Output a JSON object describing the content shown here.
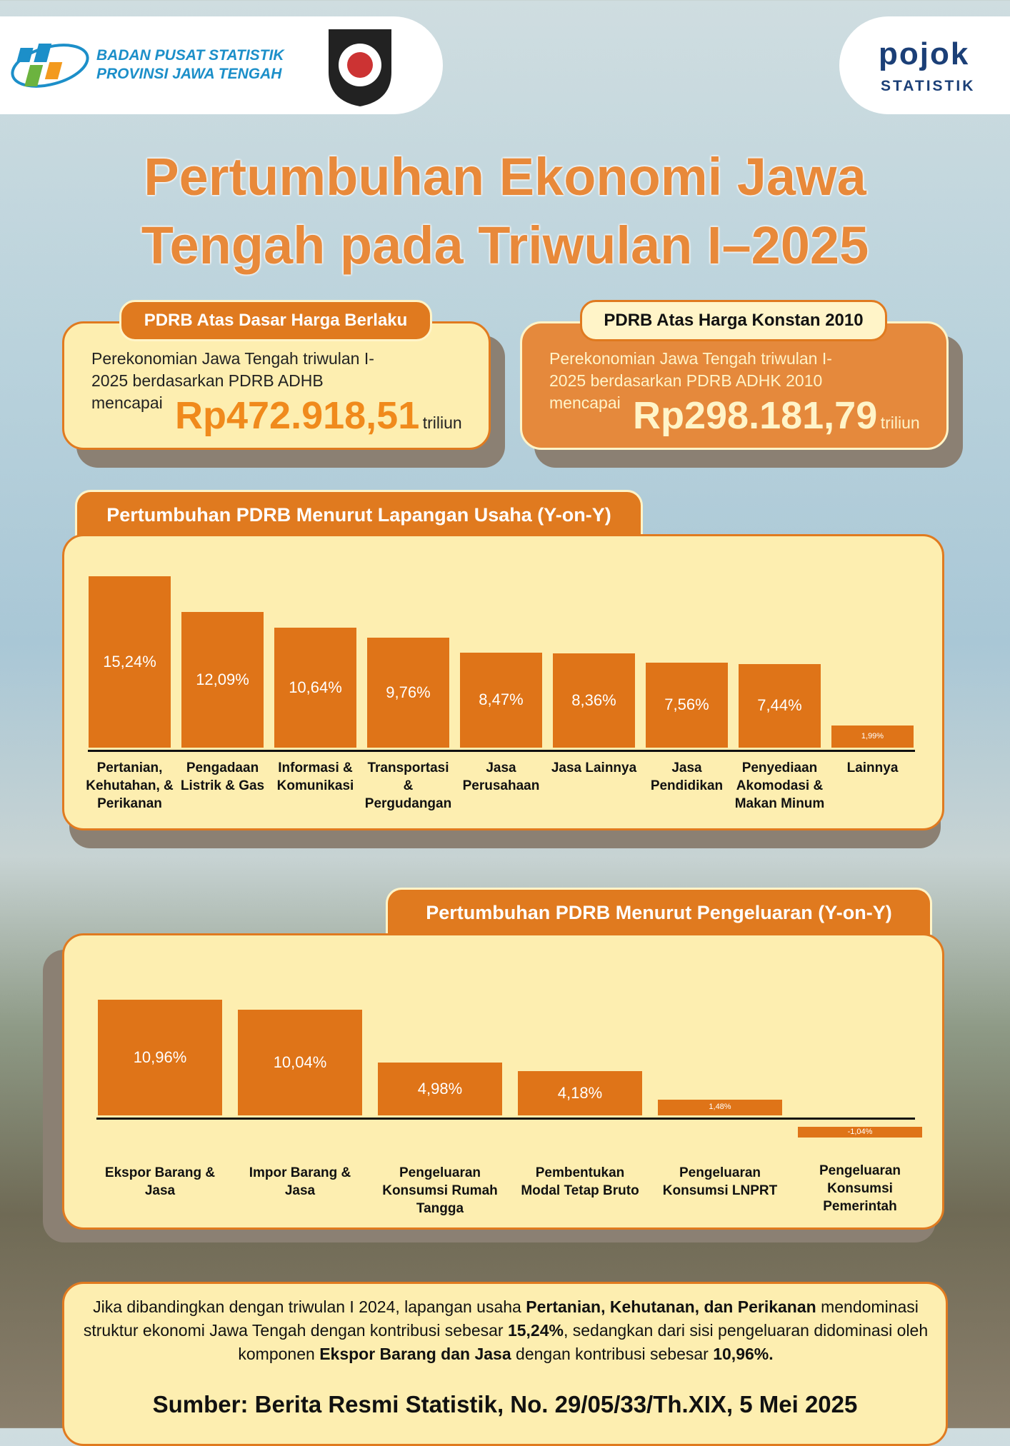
{
  "header": {
    "org_line1": "BADAN PUSAT STATISTIK",
    "org_line2": "PROVINSI JAWA TENGAH",
    "brand_top": "pojok",
    "brand_bottom": "STATISTIK"
  },
  "title": "Pertumbuhan Ekonomi Jawa Tengah pada Triwulan I–2025",
  "cards": [
    {
      "label": "PDRB Atas Dasar Harga Berlaku",
      "text": "Perekonomian Jawa Tengah triwulan I-2025 berdasarkan PDRB ADHB mencapai",
      "amount": "Rp472.918,51",
      "unit": "triliun"
    },
    {
      "label": "PDRB Atas Harga Konstan 2010",
      "text": "Perekonomian Jawa Tengah triwulan I-2025 berdasarkan PDRB ADHK 2010 mencapai",
      "amount": "Rp298.181,79",
      "unit": "triliun"
    }
  ],
  "chart_data": [
    {
      "type": "bar",
      "title": "Pertumbuhan PDRB Menurut Lapangan Usaha (Y-on-Y)",
      "color": "#df7418",
      "categories": [
        "Pertanian, Kehutahan, & Perikanan",
        "Pengadaan Listrik & Gas",
        "Informasi & Komunikasi",
        "Transportasi & Pergudangan",
        "Jasa Perusahaan",
        "Jasa Lainnya",
        "Jasa Pendidikan",
        "Penyediaan Akomodasi & Makan Minum",
        "Lainnya"
      ],
      "values": [
        15.24,
        12.09,
        10.64,
        9.76,
        8.47,
        8.36,
        7.56,
        7.44,
        1.99
      ],
      "value_labels": [
        "15,24%",
        "12,09%",
        "10,64%",
        "9,76%",
        "8,47%",
        "8,36%",
        "7,56%",
        "7,44%",
        "1,99%"
      ]
    },
    {
      "type": "bar",
      "title": "Pertumbuhan PDRB Menurut Pengeluaran (Y-on-Y)",
      "color": "#df7418",
      "categories": [
        "Ekspor Barang & Jasa",
        "Impor Barang & Jasa",
        "Pengeluaran Konsumsi Rumah Tangga",
        "Pembentukan Modal Tetap Bruto",
        "Pengeluaran Konsumsi LNPRT",
        "Pengeluaran Konsumsi Pemerintah"
      ],
      "values": [
        10.96,
        10.04,
        4.98,
        4.18,
        1.48,
        -1.04
      ],
      "value_labels": [
        "10,96%",
        "10,04%",
        "4,98%",
        "4,18%",
        "1,48%",
        "-1,04%"
      ]
    }
  ],
  "summary": [
    "Jika dibandingkan dengan triwulan I 2024, lapangan usaha ",
    "Pertanian, Kehutanan, dan Perikanan",
    " mendominasi struktur ekonomi Jawa Tengah dengan kontribusi sebesar ",
    "15,24%",
    ", sedangkan dari sisi pengeluaran didominasi oleh komponen ",
    "Ekspor Barang dan Jasa",
    " dengan kontribusi sebesar ",
    "10,96%."
  ],
  "source": "Sumber: Berita Resmi Statistik, No. 29/05/33/Th.XIX, 5 Mei 2025"
}
